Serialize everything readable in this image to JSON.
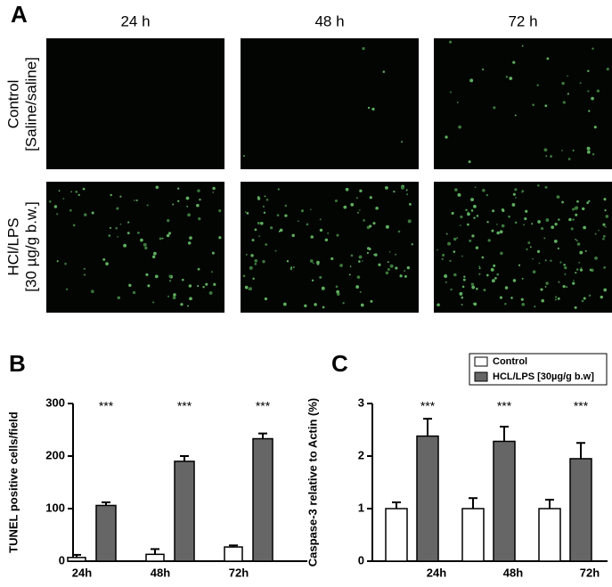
{
  "figure": {
    "panel_labels": [
      "A",
      "B",
      "C"
    ],
    "time_labels": [
      "24 h",
      "48 h",
      "72 h"
    ],
    "row_labels": [
      [
        "Control",
        "[Saline/saline]"
      ],
      [
        "HCl/LPS",
        "[30 µg/g b.w.]"
      ]
    ]
  },
  "chart_data": [
    {
      "type": "bar",
      "ylabel": "TUNEL positive cells/field",
      "categories": [
        "24h",
        "48h",
        "72h"
      ],
      "series": [
        {
          "color": "#ffffff",
          "values": [
            7,
            13,
            27
          ],
          "errors": [
            5,
            10,
            3
          ]
        },
        {
          "color": "#666666",
          "values": [
            106,
            190,
            233
          ],
          "errors": [
            6,
            10,
            10
          ]
        }
      ],
      "annotations": [
        "***",
        "***",
        "***"
      ],
      "ylim": [
        0,
        300
      ],
      "yticks": [
        0,
        100,
        200,
        300
      ]
    },
    {
      "type": "bar",
      "ylabel": "Caspase-3 relative to Actin (%)",
      "categories": [
        "24h",
        "48h",
        "72h"
      ],
      "series": [
        {
          "name": "Control",
          "color": "#ffffff",
          "values": [
            1,
            1,
            1
          ],
          "errors": [
            0.12,
            0.2,
            0.17
          ]
        },
        {
          "name": "HCL/LPS [30µg/g b.w]",
          "color": "#666666",
          "values": [
            2.38,
            2.28,
            1.95
          ],
          "errors": [
            0.33,
            0.28,
            0.3
          ]
        }
      ],
      "annotations": [
        "***",
        "***",
        "***"
      ],
      "ylim": [
        0,
        3
      ],
      "yticks": [
        0,
        1,
        2,
        3
      ],
      "legend": "upper-right"
    }
  ]
}
